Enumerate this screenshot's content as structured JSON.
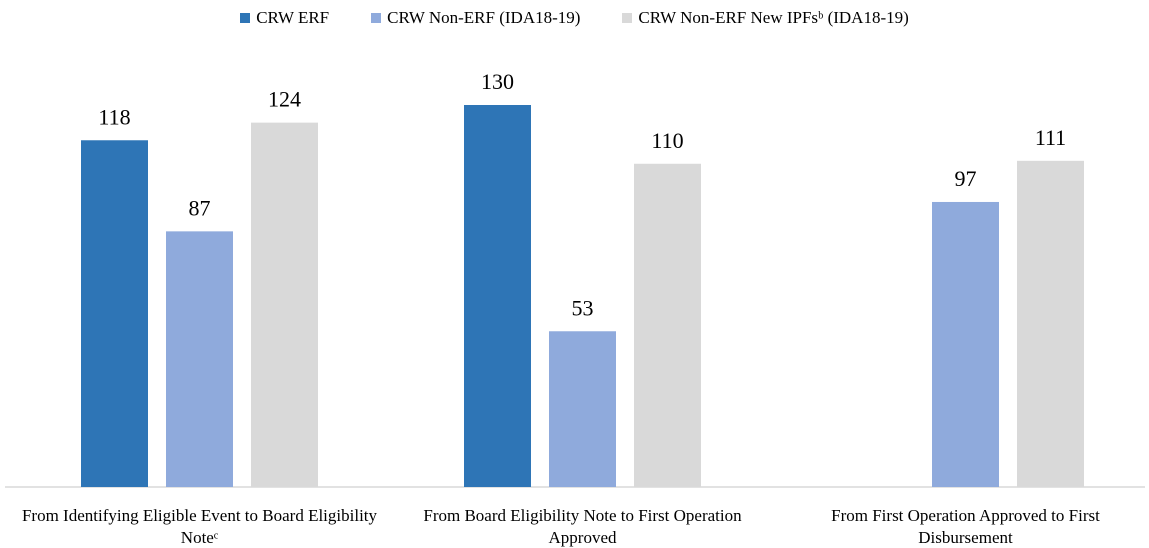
{
  "chart_data": {
    "type": "bar",
    "categories": [
      "From Identifying Eligible Event to Board Eligibility Noteᶜ",
      "From Board Eligibility Note to First Operation Approved",
      "From First Operation Approved to First Disbursement"
    ],
    "series": [
      {
        "name": "CRW ERF",
        "color": "#2e75b6",
        "values": [
          118,
          130,
          null
        ]
      },
      {
        "name": "CRW Non-ERF (IDA18-19)",
        "color": "#8faadc",
        "values": [
          87,
          53,
          97
        ]
      },
      {
        "name": "CRW Non-ERF New IPFsᵇ (IDA18-19)",
        "color": "#d9d9d9",
        "values": [
          124,
          110,
          111
        ]
      }
    ],
    "legend": "top"
  }
}
